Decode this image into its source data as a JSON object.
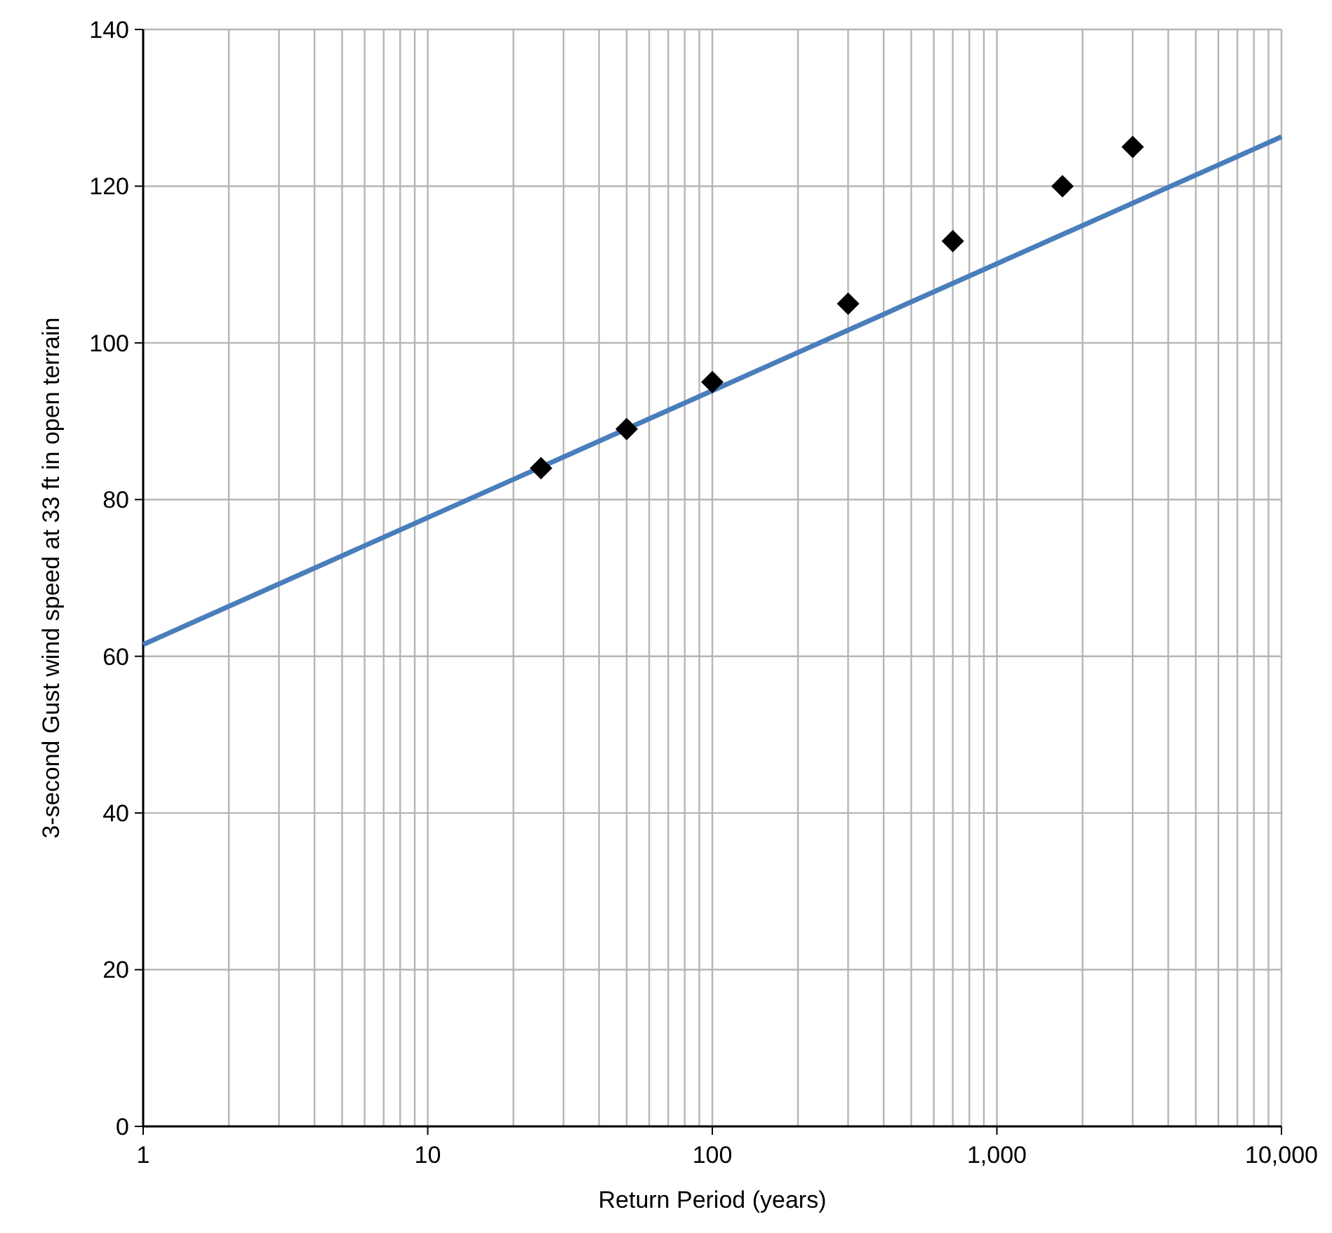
{
  "chart_data": {
    "type": "scatter",
    "xlabel": "Return Period (years)",
    "ylabel": "3-second Gust wind speed at 33 ft in open terrain",
    "log": "x",
    "grid": true,
    "xlim": [
      1,
      10000
    ],
    "ylim": [
      0,
      140
    ],
    "xticks": [
      1,
      {
        "value": 2,
        "label": null
      },
      {
        "value": 3,
        "label": null
      },
      {
        "value": 4,
        "label": null
      },
      {
        "value": 5,
        "label": null
      },
      {
        "value": 6,
        "label": null
      },
      {
        "value": 7,
        "label": null
      },
      {
        "value": 8,
        "label": null
      },
      {
        "value": 9,
        "label": null
      },
      10,
      {
        "value": 20,
        "label": null
      },
      {
        "value": 30,
        "label": null
      },
      {
        "value": 40,
        "label": null
      },
      {
        "value": 50,
        "label": null
      },
      {
        "value": 60,
        "label": null
      },
      {
        "value": 70,
        "label": null
      },
      {
        "value": 80,
        "label": null
      },
      {
        "value": 90,
        "label": null
      },
      100,
      {
        "value": 200,
        "label": null
      },
      {
        "value": 300,
        "label": null
      },
      {
        "value": 400,
        "label": null
      },
      {
        "value": 500,
        "label": null
      },
      {
        "value": 600,
        "label": null
      },
      {
        "value": 700,
        "label": null
      },
      {
        "value": 800,
        "label": null
      },
      {
        "value": 900,
        "label": null
      },
      {
        "value": 1000,
        "label": "1,000"
      },
      {
        "value": 2000,
        "label": null
      },
      {
        "value": 3000,
        "label": null
      },
      {
        "value": 4000,
        "label": null
      },
      {
        "value": 5000,
        "label": null
      },
      {
        "value": 6000,
        "label": null
      },
      {
        "value": 7000,
        "label": null
      },
      {
        "value": 8000,
        "label": null
      },
      {
        "value": 9000,
        "label": null
      },
      {
        "value": 10000,
        "label": "10,000"
      }
    ],
    "yticks": [
      0,
      20,
      40,
      60,
      80,
      100,
      120,
      140
    ],
    "series": [
      {
        "marker": "diamond",
        "color": "#000000",
        "x": [
          25,
          50,
          100,
          300,
          700,
          1700,
          3000
        ],
        "values": [
          84,
          89,
          95,
          105,
          113,
          120,
          125
        ]
      },
      {
        "type": "line",
        "marker": "none",
        "line_style": "solid",
        "color": "#4a7ebb",
        "x": [
          1,
          10000
        ],
        "values": [
          61.5,
          126.3
        ]
      }
    ]
  }
}
